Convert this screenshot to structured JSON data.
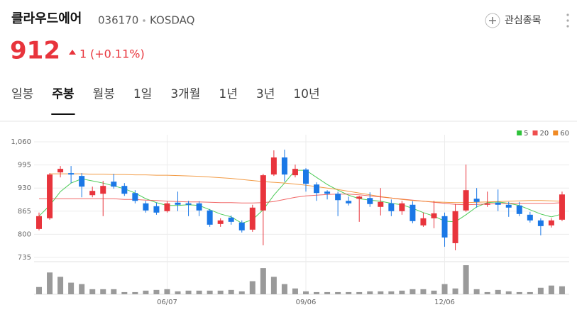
{
  "header": {
    "name": "클라우드에어",
    "code": "036170",
    "market": "KOSDAQ",
    "watch": "관심종목",
    "price": "912",
    "change": "1",
    "change_rate": "(+0.11%)"
  },
  "tabs": [
    "일봉",
    "주봉",
    "월봉",
    "1일",
    "3개월",
    "1년",
    "3년",
    "10년"
  ],
  "selected_tab": 1,
  "chart_data": {
    "type": "candlestick",
    "categories": [
      null,
      null,
      null,
      null,
      null,
      null,
      null,
      null,
      null,
      null,
      null,
      null,
      "06/07",
      null,
      null,
      null,
      null,
      null,
      null,
      null,
      null,
      null,
      null,
      null,
      null,
      "09/06",
      null,
      null,
      null,
      null,
      null,
      null,
      null,
      null,
      null,
      null,
      null,
      null,
      "12/06",
      null,
      null,
      null,
      null,
      null,
      null,
      null,
      null,
      null,
      null,
      null
    ],
    "open": [
      815,
      845,
      974,
      972,
      964,
      910,
      914,
      948,
      936,
      916,
      887,
      879,
      865,
      889,
      887,
      887,
      867,
      829,
      847,
      833,
      813,
      867,
      968,
      1016,
      966,
      982,
      940,
      920,
      914,
      894,
      900,
      902,
      877,
      887,
      865,
      883,
      825,
      845,
      851,
      775,
      867,
      900,
      883,
      889,
      883,
      881,
      855,
      839,
      825,
      841
    ],
    "high": [
      861,
      972,
      992,
      992,
      972,
      934,
      950,
      970,
      944,
      924,
      894,
      889,
      893,
      920,
      894,
      893,
      871,
      845,
      853,
      839,
      883,
      970,
      1036,
      1038,
      996,
      986,
      946,
      924,
      920,
      906,
      908,
      918,
      930,
      898,
      894,
      893,
      861,
      894,
      861,
      885,
      996,
      930,
      920,
      926,
      891,
      891,
      863,
      845,
      845,
      920
    ],
    "low": [
      811,
      841,
      960,
      944,
      904,
      904,
      851,
      928,
      908,
      887,
      861,
      855,
      861,
      865,
      851,
      851,
      821,
      821,
      827,
      805,
      807,
      769,
      964,
      948,
      960,
      920,
      894,
      898,
      851,
      881,
      835,
      877,
      853,
      851,
      855,
      831,
      821,
      817,
      765,
      755,
      863,
      875,
      877,
      865,
      849,
      851,
      833,
      797,
      819,
      837
    ],
    "close": [
      851,
      968,
      984,
      968,
      934,
      922,
      936,
      934,
      914,
      894,
      867,
      861,
      887,
      883,
      883,
      867,
      827,
      839,
      835,
      811,
      875,
      966,
      1016,
      968,
      984,
      942,
      916,
      914,
      896,
      887,
      906,
      885,
      891,
      865,
      887,
      837,
      845,
      859,
      791,
      865,
      924,
      891,
      887,
      883,
      875,
      857,
      839,
      823,
      839,
      912
    ],
    "volume": [
      10,
      30,
      24,
      16,
      14,
      7,
      7,
      7,
      3,
      3,
      5,
      6,
      7,
      4,
      5,
      5,
      5,
      5,
      6,
      4,
      18,
      36,
      24,
      14,
      8,
      4,
      3,
      3,
      3,
      3,
      3,
      4,
      4,
      4,
      5,
      7,
      7,
      5,
      14,
      8,
      40,
      7,
      3,
      6,
      4,
      3,
      3,
      9,
      12,
      11
    ],
    "up_color": "#e8343c",
    "down_color": "#1b78e6",
    "volume_color": "#9a9a9a",
    "ma": [
      {
        "name": "5",
        "color": "#2ec23a",
        "values": [
          851,
          881,
          920,
          944,
          956,
          950,
          944,
          936,
          928,
          916,
          900,
          889,
          881,
          881,
          883,
          881,
          869,
          857,
          849,
          831,
          841,
          869,
          910,
          944,
          980,
          980,
          960,
          940,
          924,
          910,
          900,
          896,
          893,
          887,
          883,
          873,
          861,
          851,
          837,
          835,
          855,
          877,
          889,
          891,
          887,
          881,
          869,
          857,
          849,
          857
        ]
      },
      {
        "name": "20",
        "color": "#ef4e4e",
        "values": [
          900,
          900,
          900,
          900,
          900,
          900,
          900,
          900,
          898,
          898,
          896,
          895,
          893,
          892,
          891,
          891,
          890,
          889,
          889,
          888,
          888,
          889,
          892,
          898,
          904,
          908,
          910,
          912,
          913,
          913,
          911,
          908,
          905,
          902,
          899,
          896,
          893,
          890,
          887,
          884,
          883,
          884,
          885,
          886,
          887,
          887,
          887,
          887,
          887,
          889
        ]
      },
      {
        "name": "60",
        "color": "#f08a24",
        "values": [
          null,
          970,
          970,
          970,
          970,
          969,
          969,
          968,
          968,
          967,
          967,
          966,
          966,
          965,
          964,
          963,
          961,
          959,
          957,
          954,
          951,
          948,
          946,
          944,
          941,
          938,
          934,
          930,
          926,
          921,
          916,
          911,
          906,
          902,
          898,
          895,
          893,
          891,
          890,
          889,
          889,
          890,
          891,
          892,
          893,
          894,
          895,
          895,
          894,
          893
        ]
      }
    ],
    "ylim": [
      735,
      1060
    ],
    "yticks": [
      {
        "value": 1060,
        "label": "1,060"
      },
      995,
      930,
      865,
      800,
      735
    ],
    "grid": true,
    "legend": "top-right"
  }
}
